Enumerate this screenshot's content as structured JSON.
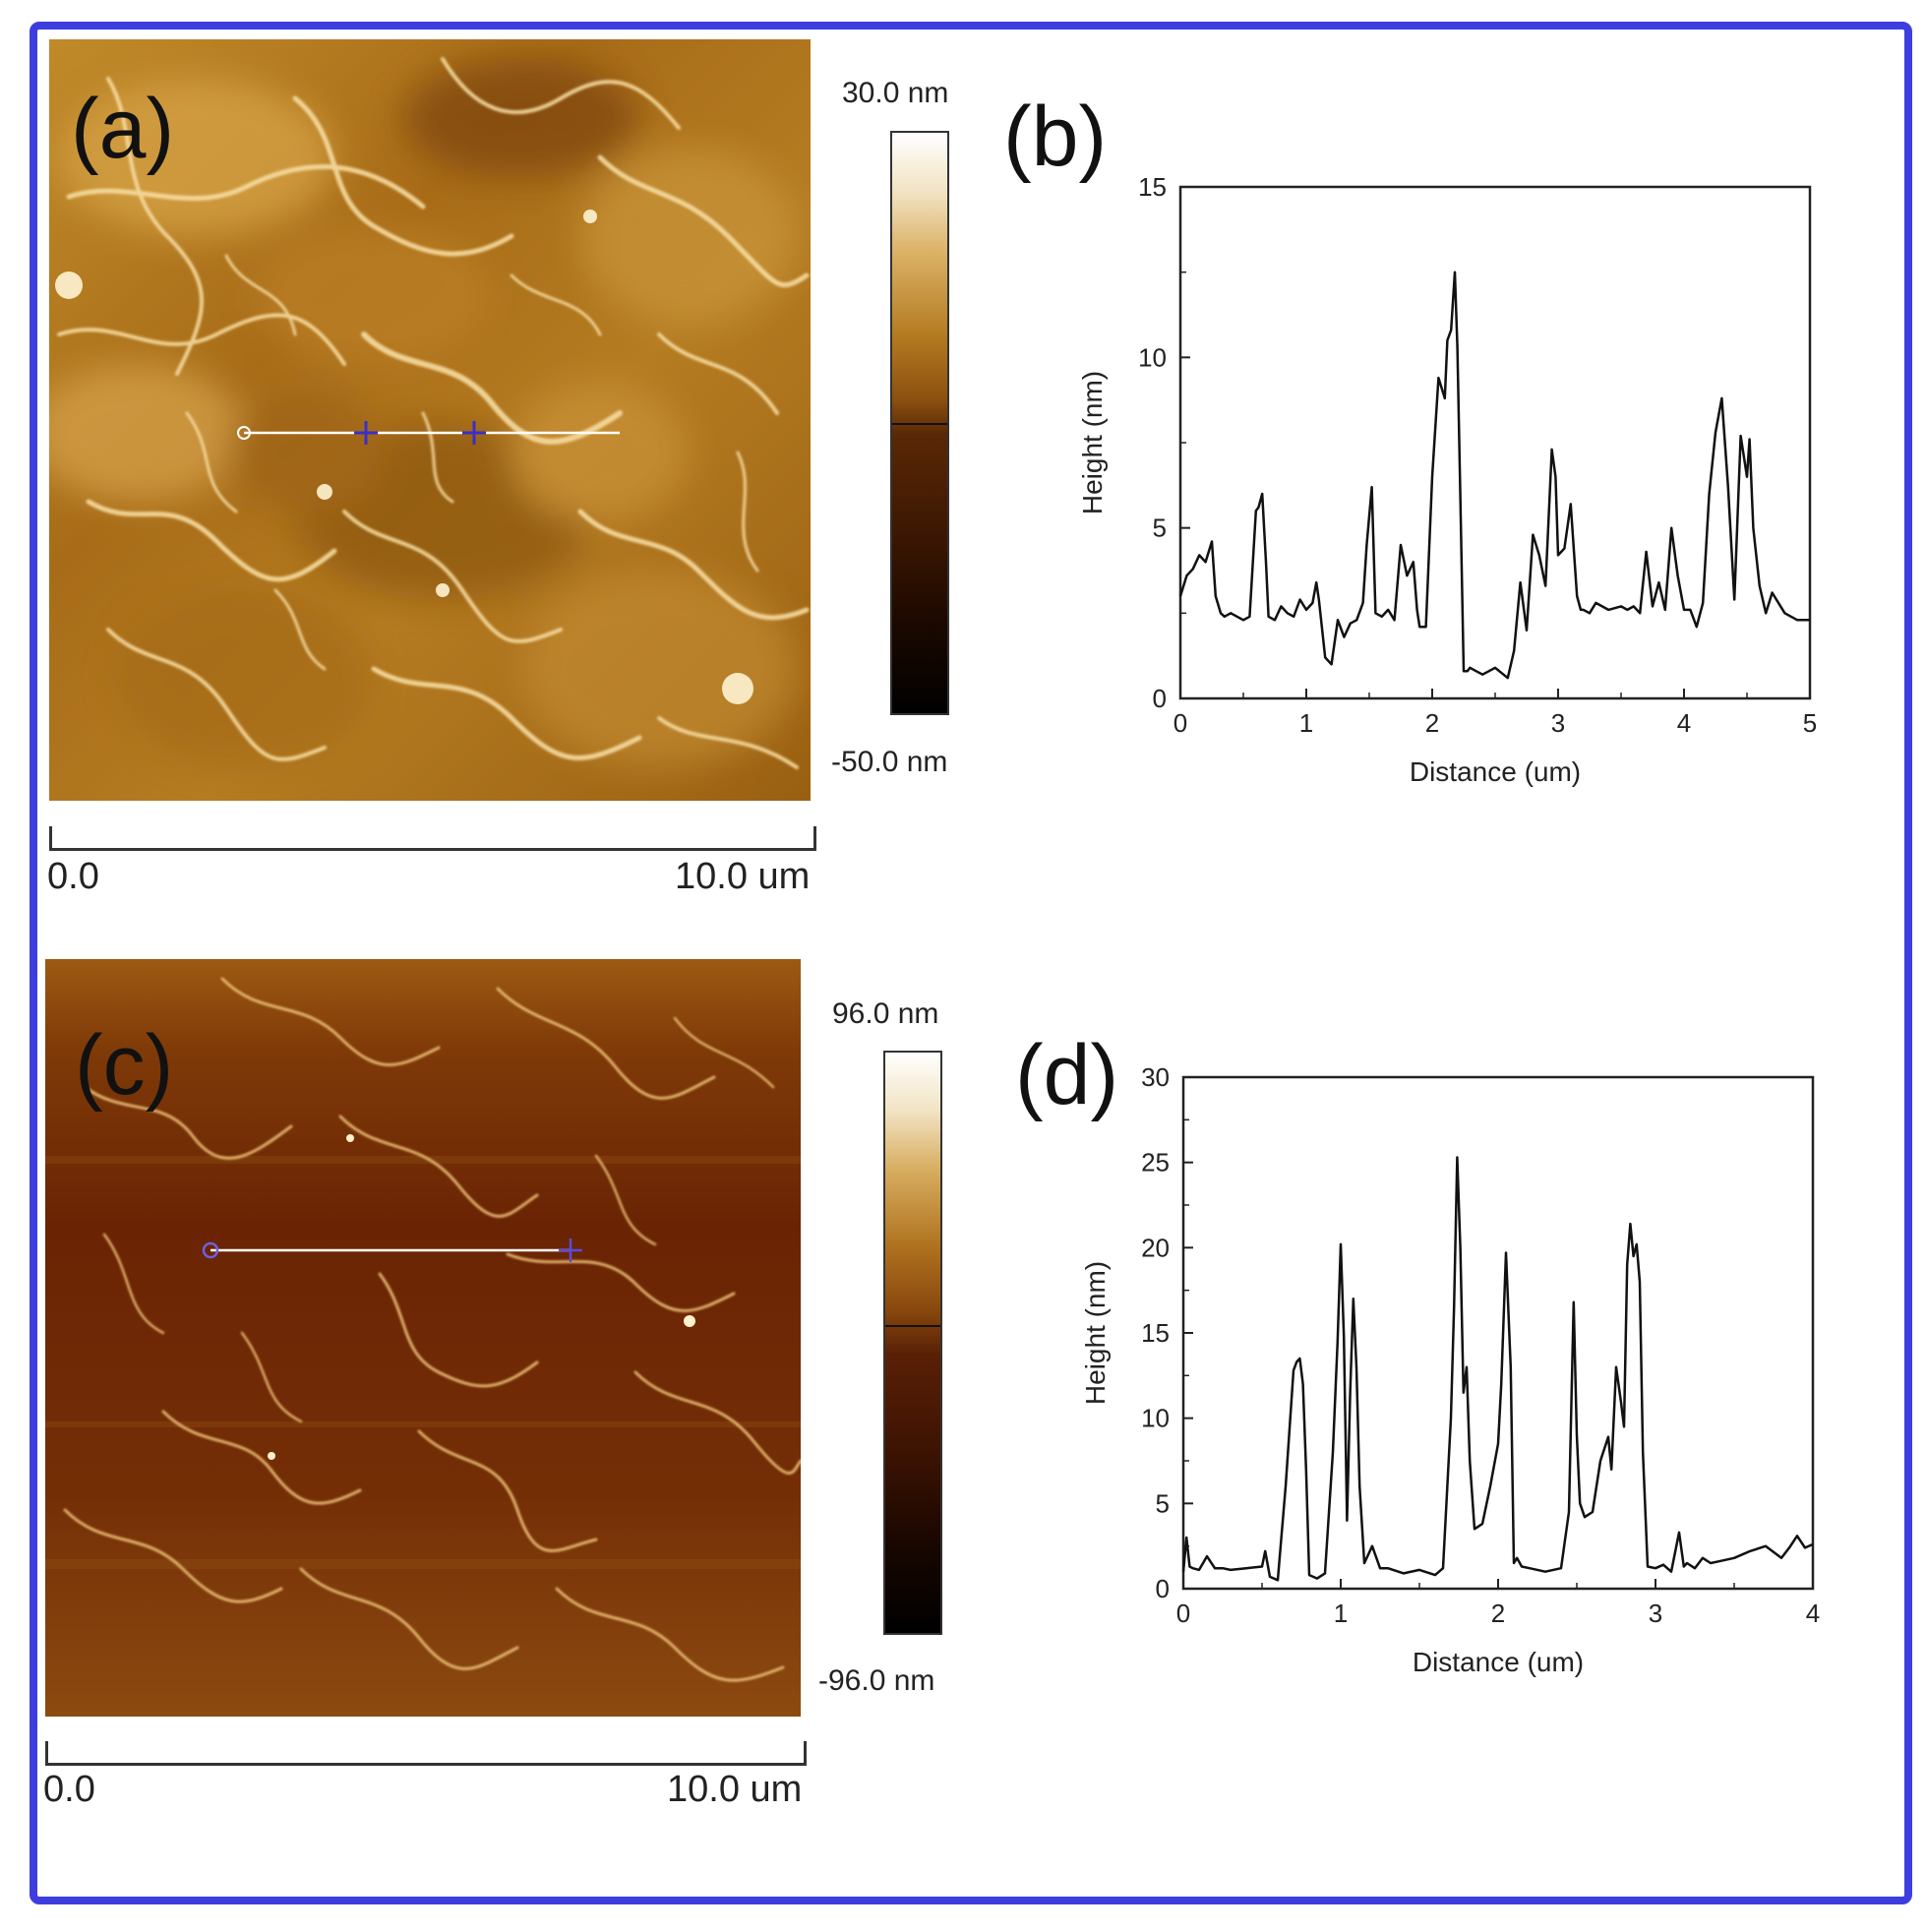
{
  "panels": {
    "a": {
      "letter": "(a)",
      "colorbar_max": "30.0 nm",
      "colorbar_min": "-50.0 nm",
      "scale_start": "0.0",
      "scale_end": "10.0 um"
    },
    "b": {
      "letter": "(b)"
    },
    "c": {
      "letter": "(c)",
      "colorbar_max": "96.0 nm",
      "colorbar_min": "-96.0 nm",
      "scale_start": "0.0",
      "scale_end": "10.0 um"
    },
    "d": {
      "letter": "(d)"
    }
  },
  "colors": {
    "frame": "#3e3ee0",
    "afm_a_base": "#b07818",
    "afm_c_base": "#6e2a06",
    "line": "#111111"
  },
  "chart_data": [
    {
      "type": "line",
      "panel": "b",
      "xlabel": "Distance (um)",
      "ylabel": "Height (nm)",
      "xlim": [
        0,
        5
      ],
      "ylim": [
        0,
        15
      ],
      "xticks": [
        0,
        1,
        2,
        3,
        4,
        5
      ],
      "yticks": [
        0,
        5,
        10,
        15
      ],
      "grid": false,
      "series": [
        {
          "x": [
            0,
            0.05,
            0.1,
            0.15,
            0.2,
            0.25,
            0.28,
            0.32,
            0.35,
            0.4,
            0.5,
            0.55,
            0.6,
            0.62,
            0.65,
            0.68,
            0.7,
            0.75,
            0.8,
            0.85,
            0.9,
            0.95,
            1.0,
            1.05,
            1.08,
            1.1,
            1.15,
            1.2,
            1.25,
            1.3,
            1.35,
            1.4,
            1.45,
            1.48,
            1.52,
            1.55,
            1.6,
            1.65,
            1.7,
            1.75,
            1.8,
            1.85,
            1.88,
            1.9,
            1.95,
            2.0,
            2.05,
            2.1,
            2.12,
            2.15,
            2.18,
            2.2,
            2.22,
            2.25,
            2.28,
            2.3,
            2.35,
            2.4,
            2.5,
            2.6,
            2.65,
            2.7,
            2.75,
            2.8,
            2.85,
            2.9,
            2.95,
            2.98,
            3.0,
            3.05,
            3.1,
            3.15,
            3.18,
            3.2,
            3.25,
            3.3,
            3.4,
            3.5,
            3.55,
            3.6,
            3.65,
            3.7,
            3.75,
            3.8,
            3.85,
            3.9,
            3.95,
            4.0,
            4.05,
            4.1,
            4.15,
            4.2,
            4.25,
            4.3,
            4.35,
            4.4,
            4.45,
            4.5,
            4.52,
            4.55,
            4.6,
            4.65,
            4.7,
            4.8,
            4.9,
            5.0
          ],
          "y": [
            3.0,
            3.6,
            3.8,
            4.2,
            4.0,
            4.6,
            3.0,
            2.5,
            2.4,
            2.5,
            2.3,
            2.4,
            5.5,
            5.6,
            6.0,
            4.0,
            2.4,
            2.3,
            2.7,
            2.5,
            2.4,
            2.9,
            2.6,
            2.8,
            3.4,
            2.9,
            1.2,
            1.0,
            2.3,
            1.8,
            2.2,
            2.3,
            2.8,
            4.5,
            6.2,
            2.5,
            2.4,
            2.6,
            2.3,
            4.5,
            3.6,
            4.0,
            2.6,
            2.1,
            2.1,
            6.5,
            9.4,
            8.8,
            10.5,
            10.8,
            12.5,
            10.3,
            6.5,
            0.8,
            0.8,
            0.9,
            0.8,
            0.7,
            0.9,
            0.6,
            1.4,
            3.4,
            2.0,
            4.8,
            4.2,
            3.3,
            7.3,
            6.5,
            4.2,
            4.4,
            5.7,
            3.0,
            2.6,
            2.6,
            2.5,
            2.8,
            2.6,
            2.7,
            2.6,
            2.7,
            2.5,
            4.3,
            2.7,
            3.4,
            2.6,
            5.0,
            3.6,
            2.6,
            2.6,
            2.1,
            2.8,
            6.0,
            7.8,
            8.8,
            6.2,
            2.9,
            7.7,
            6.5,
            7.6,
            5.0,
            3.3,
            2.5,
            3.1,
            2.5,
            2.3,
            2.3
          ]
        }
      ]
    },
    {
      "type": "line",
      "panel": "d",
      "xlabel": "Distance (um)",
      "ylabel": "Height (nm)",
      "xlim": [
        0,
        4
      ],
      "ylim": [
        0,
        30
      ],
      "xticks": [
        0,
        1,
        2,
        3,
        4
      ],
      "yticks": [
        0,
        5,
        10,
        15,
        20,
        25,
        30
      ],
      "grid": false,
      "series": [
        {
          "x": [
            0,
            0.02,
            0.04,
            0.06,
            0.1,
            0.15,
            0.2,
            0.25,
            0.3,
            0.4,
            0.5,
            0.52,
            0.55,
            0.6,
            0.65,
            0.7,
            0.72,
            0.74,
            0.76,
            0.78,
            0.8,
            0.85,
            0.9,
            0.95,
            0.98,
            1.0,
            1.02,
            1.04,
            1.06,
            1.08,
            1.1,
            1.12,
            1.15,
            1.2,
            1.25,
            1.3,
            1.4,
            1.5,
            1.6,
            1.65,
            1.7,
            1.72,
            1.74,
            1.76,
            1.78,
            1.8,
            1.82,
            1.85,
            1.9,
            1.95,
            2.0,
            2.02,
            2.05,
            2.08,
            2.1,
            2.12,
            2.15,
            2.2,
            2.3,
            2.4,
            2.45,
            2.48,
            2.5,
            2.52,
            2.55,
            2.6,
            2.65,
            2.7,
            2.72,
            2.75,
            2.78,
            2.8,
            2.82,
            2.84,
            2.86,
            2.88,
            2.9,
            2.92,
            2.95,
            3.0,
            3.05,
            3.1,
            3.15,
            3.18,
            3.2,
            3.25,
            3.3,
            3.35,
            3.4,
            3.5,
            3.6,
            3.7,
            3.8,
            3.85,
            3.9,
            3.95,
            4.0
          ],
          "y": [
            1.0,
            3.0,
            1.3,
            1.2,
            1.1,
            1.9,
            1.2,
            1.2,
            1.1,
            1.2,
            1.3,
            2.2,
            0.7,
            0.5,
            6.0,
            12.8,
            13.3,
            13.5,
            12.0,
            7.0,
            0.8,
            0.6,
            0.9,
            8.0,
            14.5,
            20.2,
            14.8,
            4.0,
            11.5,
            17.0,
            13.0,
            6.0,
            1.5,
            2.5,
            1.2,
            1.2,
            0.9,
            1.1,
            0.8,
            1.2,
            10.0,
            16.5,
            25.3,
            20.0,
            11.5,
            13.0,
            7.5,
            3.5,
            3.8,
            6.0,
            8.5,
            12.0,
            19.7,
            13.0,
            1.5,
            1.8,
            1.3,
            1.2,
            1.0,
            1.2,
            4.5,
            16.8,
            9.0,
            5.0,
            4.2,
            4.5,
            7.5,
            8.9,
            7.0,
            13.0,
            11.0,
            9.5,
            19.0,
            21.4,
            19.5,
            20.2,
            18.0,
            8.0,
            1.3,
            1.2,
            1.4,
            1.0,
            3.3,
            1.3,
            1.5,
            1.2,
            1.8,
            1.5,
            1.6,
            1.8,
            2.2,
            2.5,
            1.8,
            2.4,
            3.1,
            2.4,
            2.6
          ]
        }
      ]
    }
  ]
}
